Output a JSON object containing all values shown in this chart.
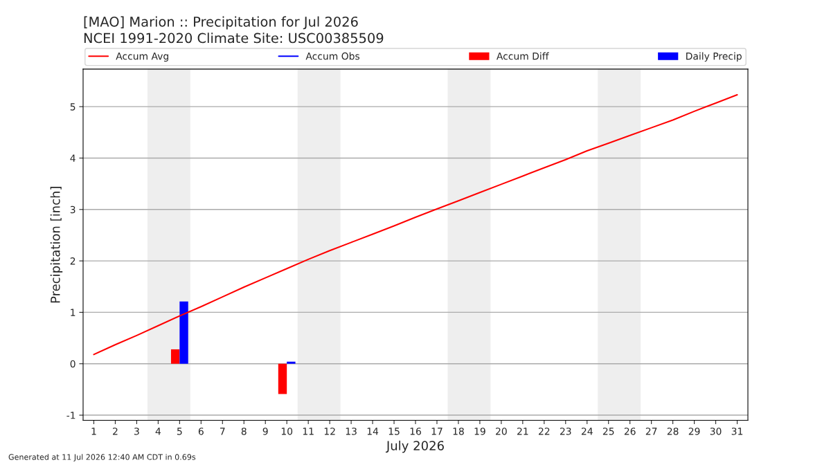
{
  "chart_data": {
    "type": "bar",
    "title": "[MAO] Marion :: Precipitation for Jul 2026",
    "subtitle": "NCEI 1991-2020 Climate Site: USC00385509",
    "xlabel": "July 2026",
    "ylabel": "Precipitation [inch]",
    "x": [
      1,
      2,
      3,
      4,
      5,
      6,
      7,
      8,
      9,
      10,
      11,
      12,
      13,
      14,
      15,
      16,
      17,
      18,
      19,
      20,
      21,
      22,
      23,
      24,
      25,
      26,
      27,
      28,
      29,
      30,
      31
    ],
    "series": [
      {
        "name": "Accum Avg",
        "type": "line",
        "color": "#ff0000",
        "values": [
          0.18,
          0.37,
          0.55,
          0.74,
          0.93,
          1.11,
          1.3,
          1.49,
          1.67,
          1.85,
          2.03,
          2.2,
          2.36,
          2.52,
          2.68,
          2.85,
          3.01,
          3.17,
          3.33,
          3.49,
          3.65,
          3.81,
          3.97,
          4.14,
          4.29,
          4.44,
          4.59,
          4.74,
          4.91,
          5.07,
          5.23
        ]
      },
      {
        "name": "Accum Obs",
        "type": "line",
        "color": "#0000ff",
        "values": [
          null,
          null,
          null,
          null,
          null,
          null,
          null,
          null,
          null,
          null,
          null,
          null,
          null,
          null,
          null,
          null,
          null,
          null,
          null,
          null,
          null,
          null,
          null,
          null,
          null,
          null,
          null,
          null,
          null,
          null,
          null
        ]
      },
      {
        "name": "Accum Diff",
        "color": "#ff0000",
        "values": [
          null,
          null,
          null,
          null,
          0.28,
          null,
          null,
          null,
          null,
          -0.59,
          null,
          null,
          null,
          null,
          null,
          null,
          null,
          null,
          null,
          null,
          null,
          null,
          null,
          null,
          null,
          null,
          null,
          null,
          null,
          null,
          null
        ]
      },
      {
        "name": "Daily Precip",
        "color": "#0000ff",
        "values": [
          null,
          null,
          null,
          null,
          1.21,
          null,
          null,
          null,
          null,
          0.04,
          null,
          null,
          null,
          null,
          null,
          null,
          null,
          null,
          null,
          null,
          null,
          null,
          null,
          null,
          null,
          null,
          null,
          null,
          null,
          null,
          null
        ]
      }
    ],
    "xlim": [
      0.5,
      31.5
    ],
    "xticks": [
      1,
      2,
      3,
      4,
      5,
      6,
      7,
      8,
      9,
      10,
      11,
      12,
      13,
      14,
      15,
      16,
      17,
      18,
      19,
      20,
      21,
      22,
      23,
      24,
      25,
      26,
      27,
      28,
      29,
      30,
      31
    ],
    "ylim": [
      -1.1,
      5.73
    ],
    "yticks": [
      -1,
      0,
      1,
      2,
      3,
      4,
      5
    ],
    "bands": [
      {
        "axis": "x",
        "from": 3.5,
        "to": 5.5,
        "color": "#eeeeee"
      },
      {
        "axis": "x",
        "from": 10.5,
        "to": 12.5,
        "color": "#eeeeee"
      },
      {
        "axis": "x",
        "from": 17.5,
        "to": 19.5,
        "color": "#eeeeee"
      },
      {
        "axis": "x",
        "from": 24.5,
        "to": 26.5,
        "color": "#eeeeee"
      }
    ],
    "grid": "y",
    "legend": "top",
    "annotations": [
      "Generated at 11 Jul 2026 12:40 AM CDT in 0.69s"
    ]
  }
}
